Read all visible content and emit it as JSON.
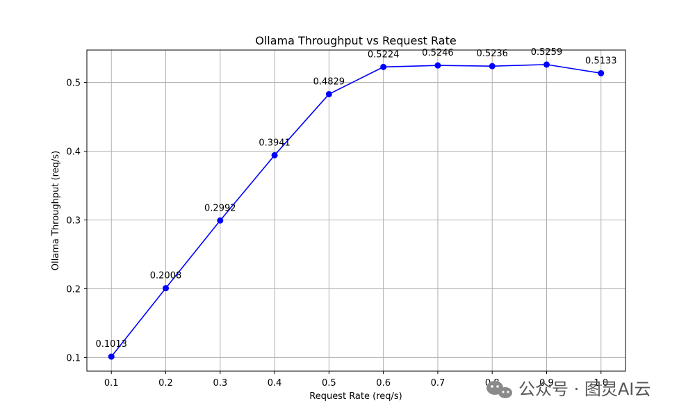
{
  "chart_data": {
    "type": "line",
    "title": "Ollama Throughput vs Request Rate",
    "xlabel": "Request Rate (req/s)",
    "ylabel": "Ollama Throughput (req/s)",
    "x": [
      0.1,
      0.2,
      0.3,
      0.4,
      0.5,
      0.6,
      0.7,
      0.8,
      0.9,
      1.0
    ],
    "x_tick_labels": [
      "0.1",
      "0.2",
      "0.3",
      "0.4",
      "0.5",
      "0.6",
      "0.7",
      "0.8",
      "0.9",
      "1.0"
    ],
    "y_ticks": [
      0.1,
      0.2,
      0.3,
      0.4,
      0.5
    ],
    "y_tick_labels": [
      "0.1",
      "0.2",
      "0.3",
      "0.4",
      "0.5"
    ],
    "xlim": [
      0.055,
      1.045
    ],
    "ylim": [
      0.0802,
      0.547
    ],
    "grid": true,
    "series": [
      {
        "color": "#0000ff",
        "marker": "circle",
        "values": [
          0.1013,
          0.2008,
          0.2992,
          0.3941,
          0.4829,
          0.5224,
          0.5246,
          0.5236,
          0.5259,
          0.5133
        ],
        "data_labels": [
          "0.1013",
          "0.2008",
          "0.2992",
          "0.3941",
          "0.4829",
          "0.5224",
          "0.5246",
          "0.5236",
          "0.5259",
          "0.5133"
        ]
      }
    ]
  },
  "watermark": {
    "text": "公众号 · 图灵AI云",
    "icon": "wechat-icon"
  }
}
